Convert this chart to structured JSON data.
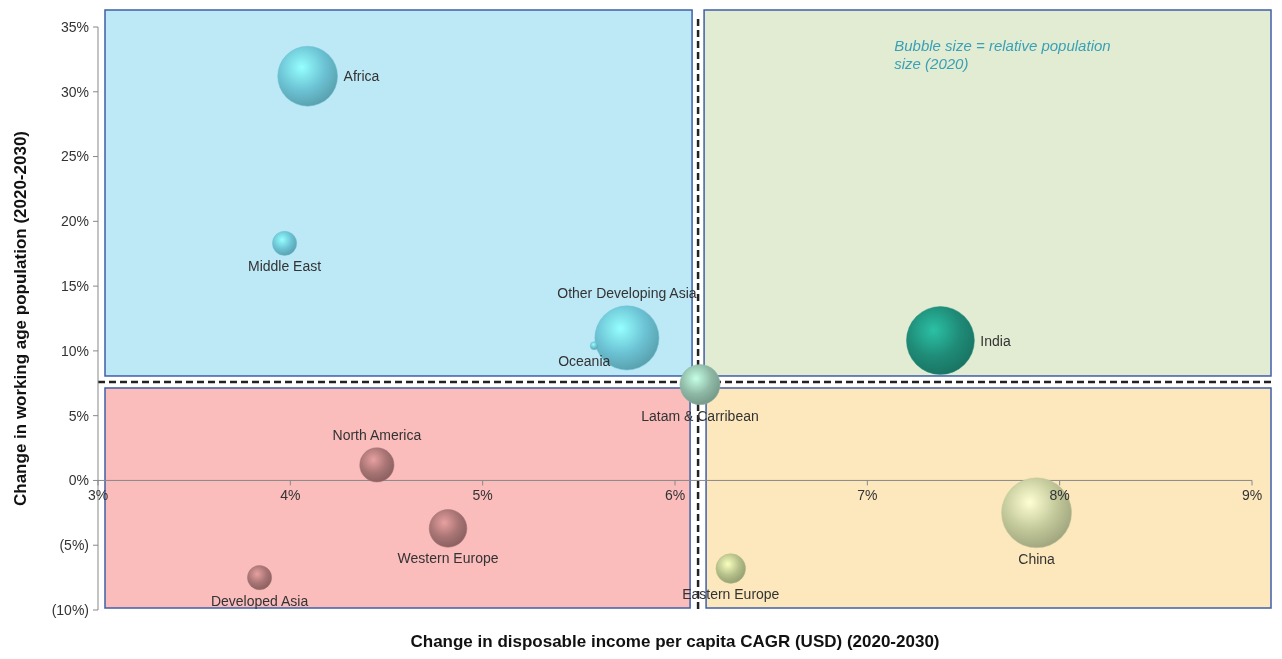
{
  "chart_data": {
    "type": "bubble",
    "xlabel": "Change in disposable income per capita CAGR (USD) (2020-2030)",
    "ylabel": "Change in working age population (2020-2030)",
    "x": [
      4.09,
      3.97,
      5.75,
      5.58,
      6.13,
      7.38,
      4.45,
      4.82,
      3.84,
      6.29,
      7.88
    ],
    "values": [
      31.2,
      18.3,
      11.0,
      10.4,
      7.4,
      10.8,
      1.2,
      -3.7,
      -7.5,
      -6.8,
      -2.5
    ],
    "sizes": [
      0.73,
      0.12,
      0.84,
      0.013,
      0.33,
      0.94,
      0.24,
      0.29,
      0.12,
      0.18,
      1
    ],
    "colors": [
      "#6cc3d4",
      "#6cc3d4",
      "#6cc3d4",
      "#6cc3d4",
      "#8fb9a6",
      "#1f8c78",
      "#a87474",
      "#a87474",
      "#a87474",
      "#b5c08a",
      "#c3c99a"
    ],
    "xlim": [
      3,
      9
    ],
    "xticks": [
      {
        "value": 3,
        "label": "3%"
      },
      {
        "value": 4,
        "label": "4%"
      },
      {
        "value": 5,
        "label": "5%"
      },
      {
        "value": 6,
        "label": "6%"
      },
      {
        "value": 7,
        "label": "7%"
      },
      {
        "value": 8,
        "label": "8%"
      },
      {
        "value": 9,
        "label": "9%"
      }
    ],
    "ylim": [
      -10,
      35
    ],
    "yticks": [
      {
        "value": -10,
        "label": "(10%)"
      },
      {
        "value": -5,
        "label": "(5%)"
      },
      {
        "value": 0,
        "label": "0%"
      },
      {
        "value": 5,
        "label": "5%"
      },
      {
        "value": 10,
        "label": "10%"
      },
      {
        "value": 15,
        "label": "15%"
      },
      {
        "value": 20,
        "label": "20%"
      },
      {
        "value": 25,
        "label": "25%"
      },
      {
        "value": 30,
        "label": "30%"
      },
      {
        "value": 35,
        "label": "35%"
      }
    ],
    "ref_lines": [
      {
        "axis": "x",
        "value": 6.12,
        "line_style": "dashed",
        "color": "#222222"
      },
      {
        "axis": "y",
        "value": 7.6,
        "line_style": "dashed",
        "color": "#222222"
      }
    ],
    "annotations": [
      {
        "text": "Africa",
        "x": 4.09,
        "y": 31.2
      },
      {
        "text": "Middle East",
        "x": 3.97,
        "y": 18.3
      },
      {
        "text": "Other Developing Asia",
        "x": 5.75,
        "y": 11.0
      },
      {
        "text": "Oceania",
        "x": 5.58,
        "y": 10.4
      },
      {
        "text": "Latam & Carribean",
        "x": 6.13,
        "y": 7.4
      },
      {
        "text": "India",
        "x": 7.38,
        "y": 10.8
      },
      {
        "text": "North America",
        "x": 4.45,
        "y": 1.2
      },
      {
        "text": "Western Europe",
        "x": 4.82,
        "y": -3.7
      },
      {
        "text": "Developed Asia",
        "x": 3.84,
        "y": -7.5
      },
      {
        "text": "Eastern Europe",
        "x": 6.29,
        "y": -6.8
      },
      {
        "text": "China",
        "x": 7.88,
        "y": -2.5
      },
      "Bubble size = relative population size (2020)"
    ],
    "grid": false,
    "marker": "circle"
  }
}
